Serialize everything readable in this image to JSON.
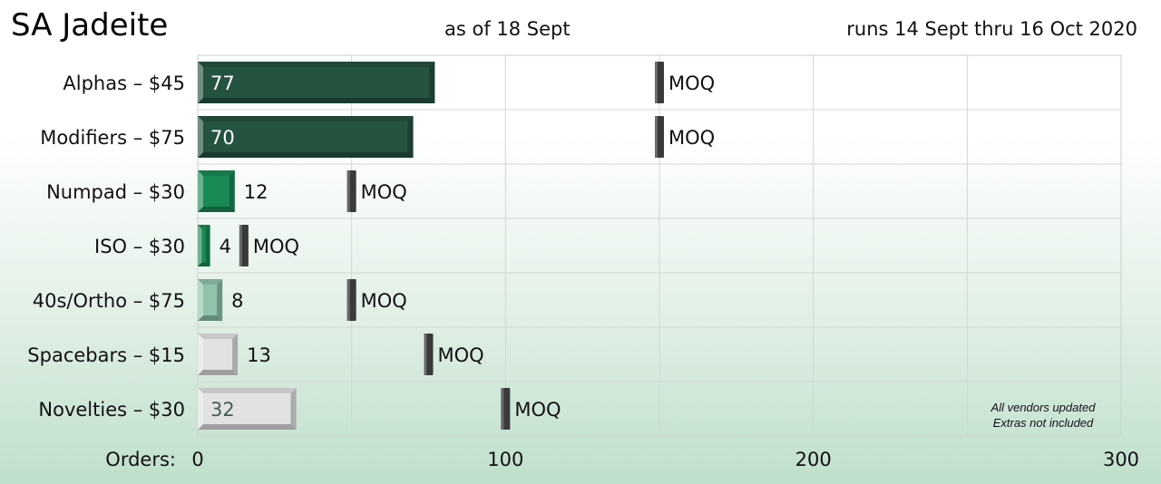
{
  "header": {
    "title": "SA Jadeite",
    "as_of": "as of 18 Sept",
    "runs": "runs 14 Sept thru 16 Oct 2020"
  },
  "chart_data": {
    "type": "bar",
    "orientation": "horizontal",
    "title": "SA Jadeite",
    "xlabel": "Orders:",
    "xlim": [
      0,
      300
    ],
    "xticks": [
      0,
      100,
      200,
      300
    ],
    "grid": true,
    "categories": [
      "Alphas – $45",
      "Modifiers – $75",
      "Numpad – $30",
      "ISO – $30",
      "40s/Ortho – $75",
      "Spacebars – $15",
      "Novelties – $30"
    ],
    "series": [
      {
        "values": [
          77,
          70,
          12,
          4,
          8,
          13,
          32
        ]
      }
    ],
    "moq": [
      150,
      150,
      50,
      15,
      50,
      75,
      100
    ],
    "moq_label": "MOQ",
    "bar_colors": [
      "#245340",
      "#245340",
      "#1a8a55",
      "#1a8a55",
      "#8fc4aa",
      "#e2e2e2",
      "#e2e2e2"
    ],
    "value_label_inside": [
      true,
      true,
      false,
      false,
      false,
      false,
      true
    ],
    "annotations": [
      "All vendors updated",
      "Extras not included"
    ]
  }
}
